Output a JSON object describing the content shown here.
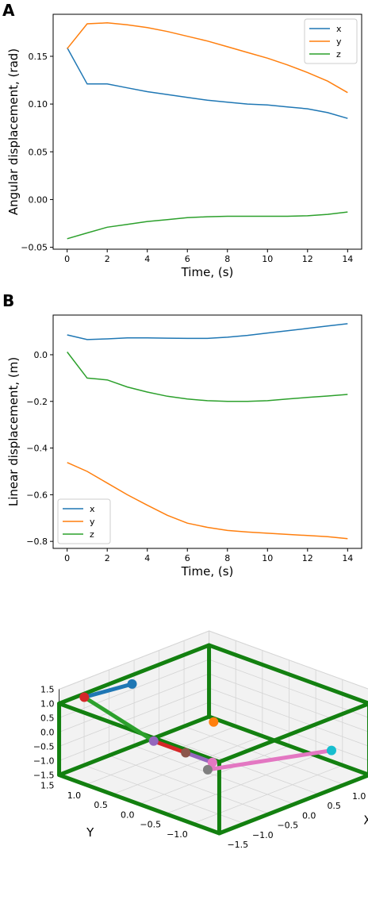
{
  "colors": {
    "x": "#1f77b4",
    "y": "#ff7f0e",
    "z": "#2ca02c",
    "box": "#138010"
  },
  "chart_data": [
    {
      "type": "line",
      "panel_label": "A",
      "xlabel": "Time, (s)",
      "ylabel": "Angular displacement, (rad)",
      "xlim": [
        -0.7,
        14.7
      ],
      "ylim": [
        -0.052,
        0.194
      ],
      "xticks": [
        0,
        2,
        4,
        6,
        8,
        10,
        12,
        14
      ],
      "yticks": [
        -0.05,
        0.0,
        0.05,
        0.1,
        0.15
      ],
      "ytick_labels": [
        "−0.05",
        "0.00",
        "0.05",
        "0.10",
        "0.15"
      ],
      "legend_position": "top-right",
      "x": [
        0,
        1,
        2,
        3,
        4,
        5,
        6,
        7,
        8,
        9,
        10,
        11,
        12,
        13,
        14
      ],
      "series": [
        {
          "name": "x",
          "color_key": "x",
          "values": [
            0.159,
            0.121,
            0.121,
            0.117,
            0.113,
            0.11,
            0.107,
            0.104,
            0.102,
            0.1,
            0.099,
            0.097,
            0.095,
            0.091,
            0.085
          ]
        },
        {
          "name": "y",
          "color_key": "y",
          "values": [
            0.158,
            0.184,
            0.185,
            0.183,
            0.18,
            0.176,
            0.171,
            0.166,
            0.16,
            0.154,
            0.148,
            0.141,
            0.133,
            0.124,
            0.112
          ]
        },
        {
          "name": "z",
          "color_key": "z",
          "values": [
            -0.041,
            -0.035,
            -0.029,
            -0.026,
            -0.023,
            -0.021,
            -0.019,
            -0.018,
            -0.0175,
            -0.0175,
            -0.0175,
            -0.0175,
            -0.017,
            -0.0155,
            -0.013
          ]
        }
      ]
    },
    {
      "type": "line",
      "panel_label": "B",
      "xlabel": "Time, (s)",
      "ylabel": "Linear displacement, (m)",
      "xlim": [
        -0.7,
        14.7
      ],
      "ylim": [
        -0.83,
        0.17
      ],
      "xticks": [
        0,
        2,
        4,
        6,
        8,
        10,
        12,
        14
      ],
      "yticks": [
        -0.8,
        -0.6,
        -0.4,
        -0.2,
        0.0
      ],
      "ytick_labels": [
        "−0.8",
        "−0.6",
        "−0.4",
        "−0.2",
        "0.0"
      ],
      "legend_position": "bottom-left",
      "x": [
        0,
        1,
        2,
        3,
        4,
        5,
        6,
        7,
        8,
        9,
        10,
        11,
        12,
        13,
        14
      ],
      "series": [
        {
          "name": "x",
          "color_key": "x",
          "values": [
            0.085,
            0.065,
            0.068,
            0.072,
            0.072,
            0.071,
            0.07,
            0.07,
            0.075,
            0.083,
            0.093,
            0.103,
            0.113,
            0.123,
            0.133
          ]
        },
        {
          "name": "y",
          "color_key": "y",
          "values": [
            -0.462,
            -0.5,
            -0.55,
            -0.6,
            -0.645,
            -0.688,
            -0.722,
            -0.74,
            -0.753,
            -0.76,
            -0.765,
            -0.77,
            -0.775,
            -0.78,
            -0.788
          ]
        },
        {
          "name": "z",
          "color_key": "z",
          "values": [
            0.012,
            -0.1,
            -0.108,
            -0.138,
            -0.16,
            -0.178,
            -0.19,
            -0.197,
            -0.2,
            -0.2,
            -0.197,
            -0.19,
            -0.183,
            -0.177,
            -0.17
          ]
        }
      ]
    },
    {
      "type": "scatter",
      "projection": "3d",
      "xlabel": "X",
      "ylabel": "Y",
      "zlabel": "",
      "xlim": [
        -1.5,
        1.5
      ],
      "ylim": [
        -1.5,
        1.5
      ],
      "zlim": [
        -1.5,
        1.5
      ],
      "xticks": [
        -1.5,
        -1.0,
        -0.5,
        0.0,
        0.5,
        1.0,
        1.5
      ],
      "xtick_labels": [
        "−1.5",
        "−1.0",
        "−0.5",
        "0.0",
        "0.5",
        "1.0",
        "1.5"
      ],
      "yticks": [
        -1.0,
        -0.5,
        0.0,
        0.5,
        1.0,
        1.5
      ],
      "ytick_labels": [
        "−1.0",
        "−0.5",
        "0.0",
        "0.5",
        "1.0",
        "1.5"
      ],
      "zticks": [
        -1.5,
        -1.0,
        -0.5,
        0.0,
        0.5,
        1.0,
        1.5
      ],
      "ztick_labels": [
        "−1.5",
        "−1.0",
        "−0.5",
        "0.0",
        "0.5",
        "1.0",
        "1.5"
      ],
      "grid": true,
      "box": {
        "x": [
          -1.5,
          1.5
        ],
        "y": [
          -1.5,
          1.5
        ],
        "z": [
          -1.5,
          1.0
        ],
        "color_key": "box"
      },
      "points": [
        {
          "x": -1.05,
          "y": 1.45,
          "z": 0.95,
          "color": "#d62728"
        },
        {
          "x": -0.2,
          "y": 1.35,
          "z": 0.9,
          "color": "#1f77b4"
        },
        {
          "x": -1.05,
          "y": 0.15,
          "z": 0.3,
          "color": "#9467bd"
        },
        {
          "x": -1.05,
          "y": -0.45,
          "z": 0.3,
          "color": "#8c564b"
        },
        {
          "x": -1.05,
          "y": -0.95,
          "z": 0.3,
          "color": "#e377c2"
        },
        {
          "x": -1.25,
          "y": -1.05,
          "z": 0.25,
          "color": "#7f7f7f"
        },
        {
          "x": 0.8,
          "y": -1.45,
          "z": -0.2,
          "color": "#17becf"
        },
        {
          "x": 0.15,
          "y": 0.15,
          "z": 0.15,
          "color": "#ff7f0e"
        }
      ],
      "links": [
        {
          "from": 0,
          "to": 1,
          "color": "#1f77b4"
        },
        {
          "from": 0,
          "to": 2,
          "color": "#2ca02c"
        },
        {
          "from": 2,
          "to": 3,
          "color": "#d62728"
        },
        {
          "from": 3,
          "to": 4,
          "color": "#9467bd"
        },
        {
          "from": 4,
          "to": 5,
          "color": "#8c564b"
        },
        {
          "from": 5,
          "to": 6,
          "color": "#e377c2"
        }
      ]
    }
  ]
}
